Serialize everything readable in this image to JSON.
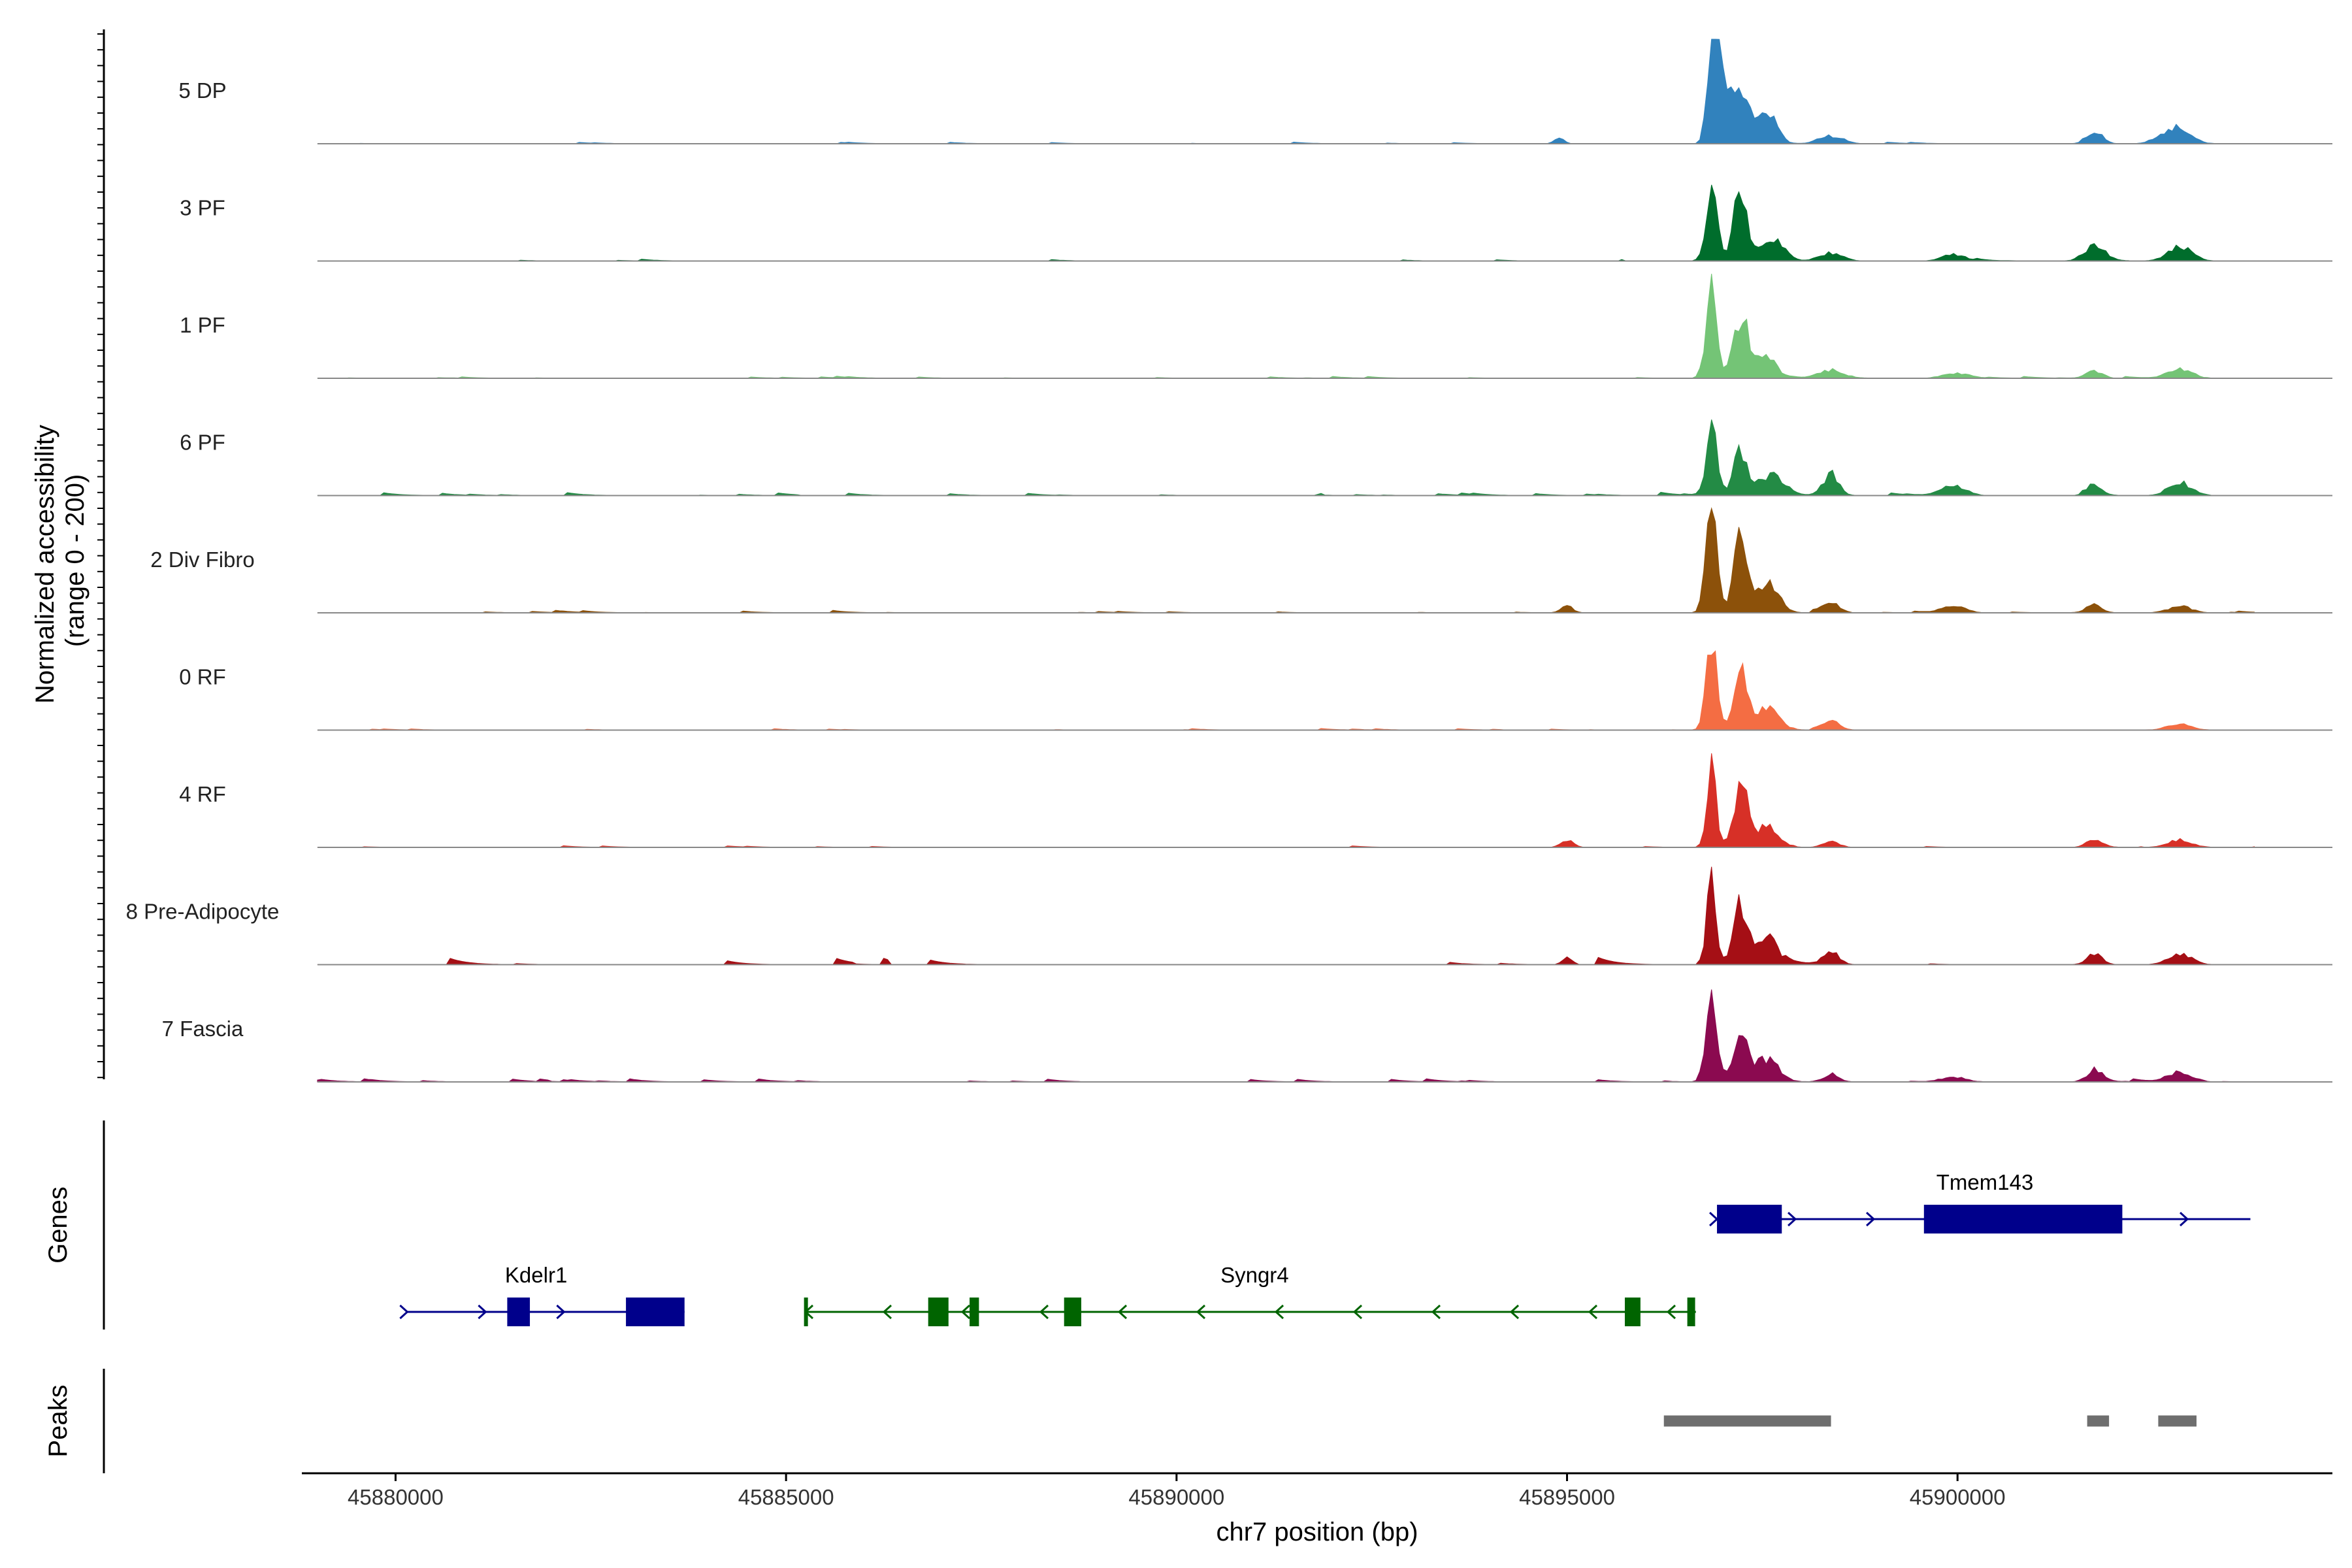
{
  "chart_data": {
    "type": "area",
    "title": "",
    "ylabel_line1": "Normalized accessibility",
    "ylabel_line2": "(range 0 - 200)",
    "xlabel": "chr7 position (bp)",
    "xlim": [
      45878800,
      45904800
    ],
    "x_ticks": [
      45880000,
      45885000,
      45890000,
      45895000,
      45900000
    ],
    "x_tick_labels": [
      "45880000",
      "45885000",
      "45890000",
      "45895000",
      "45900000"
    ],
    "ylim": [
      0,
      200
    ],
    "track_start": 45879000,
    "track_end": 45903800,
    "bin_bp": 50,
    "tracks": [
      {
        "name": "5 DP",
        "color": "#3182bd",
        "noise": 4,
        "noise_span": [
          45879000,
          45903800
        ],
        "density": 0.25,
        "peaks": [
          [
            45896850,
            175,
            60
          ],
          [
            45896980,
            130,
            90
          ],
          [
            45897220,
            95,
            110
          ],
          [
            45897560,
            55,
            120
          ],
          [
            45898380,
            15,
            150
          ],
          [
            45901750,
            25,
            100
          ],
          [
            45902780,
            30,
            180
          ],
          [
            45894900,
            12,
            60
          ]
        ]
      },
      {
        "name": "3 PF",
        "color": "#006d2c",
        "noise": 5,
        "noise_span": [
          45879000,
          45903800
        ],
        "density": 0.3,
        "peaks": [
          [
            45896850,
            150,
            70
          ],
          [
            45897220,
            125,
            90
          ],
          [
            45897620,
            45,
            150
          ],
          [
            45898380,
            15,
            150
          ],
          [
            45899950,
            12,
            150
          ],
          [
            45901750,
            28,
            130
          ],
          [
            45902850,
            28,
            150
          ]
        ]
      },
      {
        "name": "1 PF",
        "color": "#74c476",
        "noise": 5,
        "noise_span": [
          45879000,
          45903800
        ],
        "density": 0.4,
        "peaks": [
          [
            45896850,
            180,
            70
          ],
          [
            45897220,
            115,
            90
          ],
          [
            45897520,
            40,
            150
          ],
          [
            45898380,
            15,
            150
          ],
          [
            45899950,
            10,
            150
          ],
          [
            45901750,
            15,
            100
          ],
          [
            45902850,
            18,
            150
          ]
        ]
      },
      {
        "name": "6 PF",
        "color": "#238b45",
        "noise": 8,
        "noise_span": [
          45879000,
          45903800
        ],
        "density": 0.45,
        "peaks": [
          [
            45896850,
            125,
            70
          ],
          [
            45897220,
            80,
            90
          ],
          [
            45897620,
            40,
            150
          ],
          [
            45898380,
            40,
            100
          ],
          [
            45899950,
            20,
            150
          ],
          [
            45901750,
            18,
            100
          ],
          [
            45902850,
            25,
            150
          ]
        ]
      },
      {
        "name": "2 Div Fibro",
        "color": "#8c510a",
        "noise": 6,
        "noise_span": [
          45879000,
          45903800
        ],
        "density": 0.45,
        "peaks": [
          [
            45896850,
            185,
            70
          ],
          [
            45897220,
            135,
            90
          ],
          [
            45897560,
            55,
            150
          ],
          [
            45898380,
            22,
            100
          ],
          [
            45899950,
            12,
            150
          ],
          [
            45901750,
            15,
            100
          ],
          [
            45902850,
            12,
            150
          ],
          [
            45895000,
            12,
            80
          ]
        ]
      },
      {
        "name": "0 RF",
        "color": "#f46d43",
        "noise": 4,
        "noise_span": [
          45879000,
          45903800
        ],
        "density": 0.35,
        "peaks": [
          [
            45896850,
            165,
            70
          ],
          [
            45897220,
            110,
            90
          ],
          [
            45897560,
            40,
            150
          ],
          [
            45898380,
            20,
            100
          ],
          [
            45902850,
            12,
            150
          ]
        ]
      },
      {
        "name": "4 RF",
        "color": "#d73027",
        "noise": 4,
        "noise_span": [
          45879000,
          45903800
        ],
        "density": 0.3,
        "peaks": [
          [
            45896850,
            170,
            60
          ],
          [
            45897220,
            120,
            90
          ],
          [
            45897560,
            40,
            150
          ],
          [
            45898380,
            12,
            100
          ],
          [
            45895000,
            15,
            80
          ],
          [
            45901750,
            15,
            100
          ],
          [
            45902850,
            15,
            150
          ]
        ]
      },
      {
        "name": "8 Pre-Adipocyte",
        "color": "#a50f15",
        "noise": 18,
        "noise_span": [
          45880150,
          45903000
        ],
        "density": 0.22,
        "peaks": [
          [
            45896850,
            150,
            60
          ],
          [
            45897220,
            110,
            90
          ],
          [
            45897560,
            50,
            120
          ],
          [
            45898380,
            25,
            100
          ],
          [
            45895000,
            15,
            60
          ],
          [
            45901750,
            20,
            100
          ],
          [
            45902850,
            20,
            150
          ]
        ]
      },
      {
        "name": "7 Fascia",
        "color": "#8b0a50",
        "noise": 8,
        "noise_span": [
          45879000,
          45903800
        ],
        "density": 0.5,
        "peaks": [
          [
            45896850,
            155,
            70
          ],
          [
            45897220,
            90,
            90
          ],
          [
            45897560,
            40,
            150
          ],
          [
            45898380,
            15,
            100
          ],
          [
            45899950,
            10,
            150
          ],
          [
            45901750,
            20,
            100
          ],
          [
            45902850,
            20,
            150
          ]
        ]
      }
    ],
    "genes_label": "Genes",
    "genes": [
      {
        "name": "Tmem143",
        "strand": "+",
        "start": 45896920,
        "end": 45903750,
        "row": 0,
        "color": "#00008b",
        "exons": [
          [
            45896920,
            45897750,
            1
          ],
          [
            45899570,
            45902110,
            1
          ]
        ],
        "label_x": 45900350
      },
      {
        "name": "Kdelr1",
        "strand": "+",
        "start": 45880150,
        "end": 45883700,
        "row": 1,
        "color": "#00008b",
        "exons": [
          [
            45881430,
            45881720,
            1
          ],
          [
            45882950,
            45883700,
            1
          ]
        ],
        "label_x": 45881800
      },
      {
        "name": "Syngr4",
        "strand": "-",
        "start": 45885250,
        "end": 45896650,
        "row": 1,
        "color": "#006400",
        "exons": [
          [
            45885230,
            45885260,
            1
          ],
          [
            45886820,
            45887080,
            1
          ],
          [
            45887350,
            45887470,
            1
          ],
          [
            45888560,
            45888780,
            1
          ],
          [
            45895740,
            45895940,
            1
          ],
          [
            45896540,
            45896640,
            1
          ]
        ],
        "label_x": 45891000
      }
    ],
    "peaks_label": "Peaks",
    "peaks_color": "#6e6e6e",
    "peak_regions": [
      [
        45896240,
        45898380
      ],
      [
        45901660,
        45901940
      ],
      [
        45902570,
        45903060
      ]
    ]
  }
}
